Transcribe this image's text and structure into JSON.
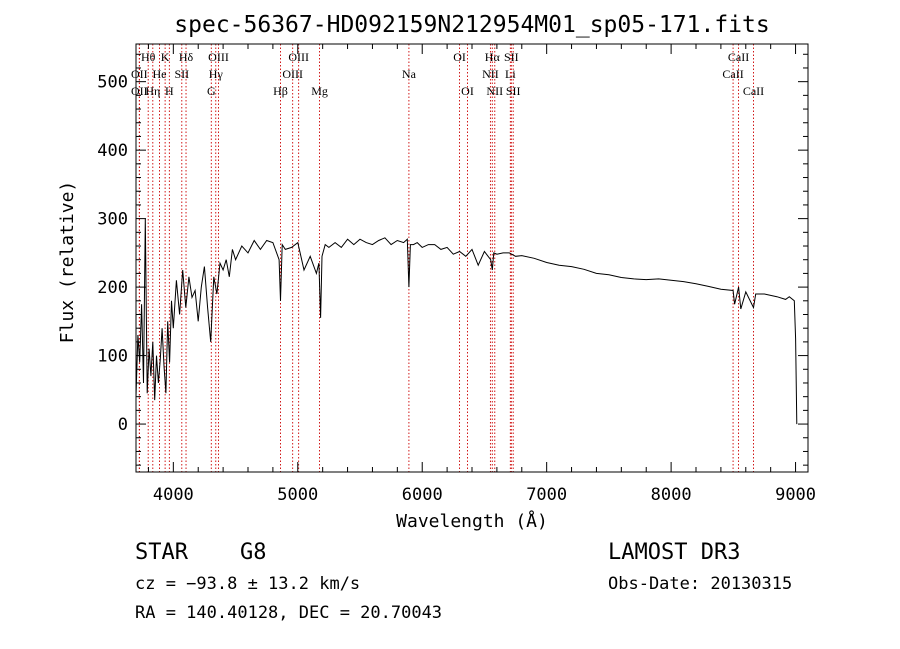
{
  "colors": {
    "line": "#000000",
    "marker": "#cc0000",
    "background": "#ffffff"
  },
  "chart_data": {
    "type": "line",
    "title": "spec-56367-HD092159N212954M01_sp05-171.fits",
    "xlabel": "Wavelength (Å)",
    "ylabel": "Flux (relative)",
    "xlim": [
      3700,
      9100
    ],
    "ylim": [
      -70,
      555
    ],
    "x_ticks": [
      4000,
      5000,
      6000,
      7000,
      8000,
      9000
    ],
    "y_ticks": [
      0,
      100,
      200,
      300,
      400,
      500
    ],
    "grid": false,
    "series": [
      {
        "name": "flux",
        "x": [
          3700,
          3715,
          3730,
          3745,
          3760,
          3775,
          3790,
          3805,
          3820,
          3835,
          3850,
          3865,
          3880,
          3895,
          3910,
          3925,
          3940,
          3955,
          3970,
          3985,
          4000,
          4025,
          4050,
          4075,
          4100,
          4125,
          4150,
          4175,
          4200,
          4225,
          4250,
          4275,
          4300,
          4325,
          4350,
          4375,
          4400,
          4425,
          4450,
          4475,
          4500,
          4550,
          4600,
          4650,
          4700,
          4750,
          4800,
          4850,
          4861,
          4875,
          4900,
          4950,
          5000,
          5050,
          5100,
          5150,
          5170,
          5183,
          5195,
          5220,
          5250,
          5300,
          5350,
          5400,
          5450,
          5500,
          5550,
          5600,
          5650,
          5700,
          5750,
          5800,
          5850,
          5880,
          5893,
          5905,
          5930,
          5960,
          6000,
          6050,
          6100,
          6150,
          6200,
          6250,
          6300,
          6350,
          6400,
          6450,
          6500,
          6550,
          6563,
          6575,
          6600,
          6650,
          6700,
          6750,
          6800,
          6900,
          7000,
          7100,
          7200,
          7300,
          7400,
          7500,
          7600,
          7700,
          7800,
          7900,
          8000,
          8100,
          8200,
          8300,
          8400,
          8498,
          8510,
          8542,
          8560,
          8600,
          8662,
          8680,
          8750,
          8850,
          8920,
          8950,
          8990,
          9000,
          9010
        ],
        "y": [
          40,
          130,
          90,
          175,
          60,
          300,
          45,
          110,
          70,
          120,
          35,
          100,
          60,
          95,
          140,
          85,
          45,
          150,
          90,
          180,
          140,
          210,
          160,
          225,
          170,
          215,
          185,
          195,
          150,
          200,
          230,
          170,
          120,
          215,
          190,
          235,
          225,
          240,
          215,
          255,
          240,
          260,
          250,
          268,
          255,
          268,
          265,
          240,
          180,
          262,
          255,
          258,
          265,
          225,
          245,
          220,
          235,
          155,
          245,
          262,
          258,
          265,
          258,
          270,
          262,
          270,
          265,
          262,
          268,
          272,
          262,
          268,
          265,
          270,
          200,
          262,
          262,
          265,
          258,
          262,
          262,
          255,
          258,
          248,
          252,
          245,
          255,
          232,
          252,
          240,
          225,
          250,
          248,
          250,
          250,
          245,
          246,
          242,
          236,
          232,
          230,
          226,
          220,
          218,
          214,
          212,
          211,
          212,
          210,
          208,
          205,
          201,
          197,
          195,
          175,
          200,
          168,
          193,
          170,
          190,
          190,
          186,
          182,
          186,
          180,
          125,
          0
        ]
      }
    ],
    "line_markers": [
      {
        "label": "OII",
        "wavelength": 3727,
        "row": 2
      },
      {
        "label": "OII",
        "wavelength": 3727,
        "row": 3
      },
      {
        "label": "Hθ",
        "wavelength": 3798,
        "row": 1
      },
      {
        "label": "He",
        "wavelength": 3889,
        "row": 2
      },
      {
        "label": "Hη",
        "wavelength": 3835,
        "row": 3
      },
      {
        "label": "K",
        "wavelength": 3934,
        "row": 1
      },
      {
        "label": "H",
        "wavelength": 3968,
        "row": 3
      },
      {
        "label": "SII",
        "wavelength": 4068,
        "row": 2
      },
      {
        "label": "Hδ",
        "wavelength": 4102,
        "row": 1
      },
      {
        "label": "OIII",
        "wavelength": 4363,
        "row": 1
      },
      {
        "label": "Hγ",
        "wavelength": 4341,
        "row": 2
      },
      {
        "label": "G",
        "wavelength": 4305,
        "row": 3
      },
      {
        "label": "Hβ",
        "wavelength": 4861,
        "row": 3
      },
      {
        "label": "OIII",
        "wavelength": 5007,
        "row": 1
      },
      {
        "label": "OIII",
        "wavelength": 4959,
        "row": 2
      },
      {
        "label": "Mg",
        "wavelength": 5175,
        "row": 3
      },
      {
        "label": "Na",
        "wavelength": 5893,
        "row": 2
      },
      {
        "label": "OI",
        "wavelength": 6300,
        "row": 1
      },
      {
        "label": "OI",
        "wavelength": 6364,
        "row": 3
      },
      {
        "label": "Hα",
        "wavelength": 6563,
        "row": 1
      },
      {
        "label": "NII",
        "wavelength": 6548,
        "row": 2
      },
      {
        "label": "NII",
        "wavelength": 6583,
        "row": 3
      },
      {
        "label": "SII",
        "wavelength": 6716,
        "row": 1
      },
      {
        "label": "Li",
        "wavelength": 6708,
        "row": 2
      },
      {
        "label": "SII",
        "wavelength": 6731,
        "row": 3
      },
      {
        "label": "CaII",
        "wavelength": 8542,
        "row": 1
      },
      {
        "label": "CaII",
        "wavelength": 8498,
        "row": 2
      },
      {
        "label": "CaII",
        "wavelength": 8662,
        "row": 3
      }
    ]
  },
  "info": {
    "class": "STAR",
    "subclass": "G8",
    "cz": "cz = −93.8 ± 13.2 km/s",
    "coords": "RA = 140.40128, DEC =  20.70043",
    "survey": "LAMOST DR3",
    "obs_date": "Obs-Date: 20130315"
  }
}
